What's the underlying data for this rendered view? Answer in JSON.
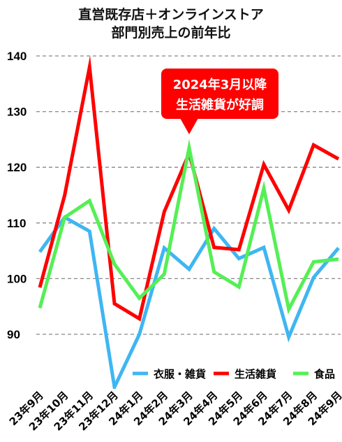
{
  "title_line1": "直営既存店＋オンラインストア",
  "title_line2": "部門別売上の前年比",
  "annotation": {
    "line1": "2024年3月以降",
    "line2": "生活雑貨が好調",
    "color": "#ff0000",
    "at_category": "24年3月"
  },
  "chart_data": {
    "type": "line",
    "categories": [
      "23年9月",
      "23年10月",
      "23年11月",
      "23年12月",
      "24年1月",
      "24年2月",
      "24年3月",
      "24年4月",
      "24年5月",
      "24年6月",
      "24年7月",
      "24年8月",
      "24年9月"
    ],
    "y_ticks": [
      90,
      100,
      110,
      120,
      130,
      140
    ],
    "ylim": [
      80,
      141
    ],
    "grid": true,
    "legend_position": "bottom-right",
    "series": [
      {
        "name": "衣服・雑貨",
        "color": "#3fb6f2",
        "values": [
          104.8,
          111.0,
          108.5,
          80.5,
          90.0,
          105.5,
          101.7,
          109.0,
          103.6,
          105.6,
          89.5,
          100.2,
          105.5
        ]
      },
      {
        "name": "生活雑貨",
        "color": "#ff0000",
        "values": [
          98.4,
          115.0,
          138.0,
          95.5,
          92.8,
          112.0,
          122.5,
          105.6,
          105.2,
          120.5,
          112.3,
          124.0,
          121.5
        ]
      },
      {
        "name": "食品",
        "color": "#55ef55",
        "values": [
          94.7,
          111.0,
          114.0,
          102.6,
          96.5,
          100.8,
          123.5,
          101.2,
          98.5,
          116.2,
          94.5,
          103.0,
          103.5
        ]
      }
    ]
  }
}
